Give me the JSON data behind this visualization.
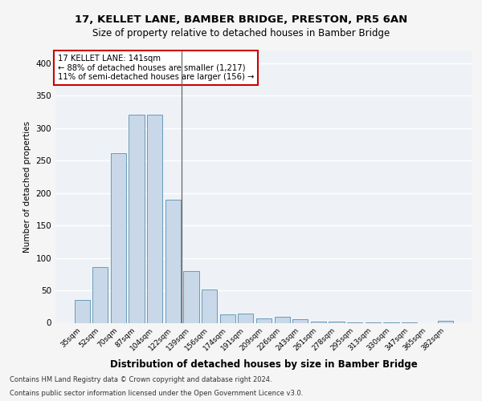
{
  "title_line1": "17, KELLET LANE, BAMBER BRIDGE, PRESTON, PR5 6AN",
  "title_line2": "Size of property relative to detached houses in Bamber Bridge",
  "xlabel": "Distribution of detached houses by size in Bamber Bridge",
  "ylabel": "Number of detached properties",
  "categories": [
    "35sqm",
    "52sqm",
    "70sqm",
    "87sqm",
    "104sqm",
    "122sqm",
    "139sqm",
    "156sqm",
    "174sqm",
    "191sqm",
    "209sqm",
    "226sqm",
    "243sqm",
    "261sqm",
    "278sqm",
    "295sqm",
    "313sqm",
    "330sqm",
    "347sqm",
    "365sqm",
    "382sqm"
  ],
  "values": [
    35,
    86,
    261,
    320,
    321,
    190,
    80,
    51,
    13,
    14,
    7,
    9,
    5,
    2,
    2,
    1,
    1,
    1,
    1,
    0,
    3
  ],
  "bar_color": "#c8d8e8",
  "bar_edge_color": "#6a9ab8",
  "vline_x_index": 5,
  "vline_color": "#666666",
  "annotation_line1": "17 KELLET LANE: 141sqm",
  "annotation_line2": "← 88% of detached houses are smaller (1,217)",
  "annotation_line3": "11% of semi-detached houses are larger (156) →",
  "annotation_box_facecolor": "#ffffff",
  "annotation_box_edgecolor": "#cc0000",
  "ylim": [
    0,
    420
  ],
  "yticks": [
    0,
    50,
    100,
    150,
    200,
    250,
    300,
    350,
    400
  ],
  "background_color": "#eef2f7",
  "grid_color": "#ffffff",
  "footer_line1": "Contains HM Land Registry data © Crown copyright and database right 2024.",
  "footer_line2": "Contains public sector information licensed under the Open Government Licence v3.0."
}
